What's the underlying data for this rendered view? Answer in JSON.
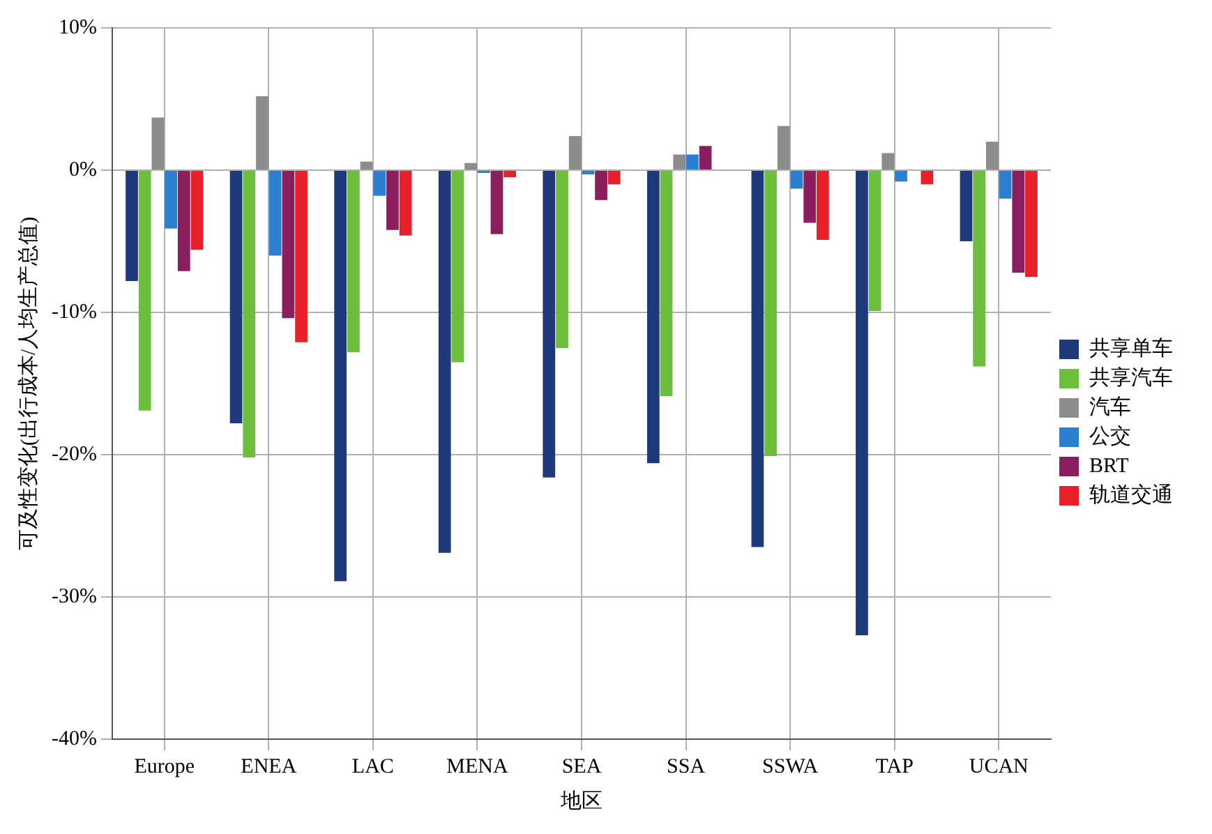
{
  "chart_data": {
    "type": "bar",
    "xlabel": "地区",
    "ylabel": "可及性变化(出行成本/人均生产总值)",
    "categories": [
      "Europe",
      "ENEA",
      "LAC",
      "MENA",
      "SEA",
      "SSA",
      "SSWA",
      "TAP",
      "UCAN"
    ],
    "series": [
      {
        "name": "共享单车",
        "color": "#1f3a7a",
        "values": [
          -7.8,
          -17.8,
          -28.9,
          -26.9,
          -21.6,
          -20.6,
          -26.5,
          -32.7,
          -5.0
        ]
      },
      {
        "name": "共享汽车",
        "color": "#6cbf3c",
        "values": [
          -16.9,
          -20.2,
          -12.8,
          -13.5,
          -12.5,
          -15.9,
          -20.1,
          -9.9,
          -13.8
        ]
      },
      {
        "name": "汽车",
        "color": "#8c8c8c",
        "values": [
          3.7,
          5.2,
          0.6,
          0.5,
          2.4,
          1.1,
          3.1,
          1.2,
          2.0
        ]
      },
      {
        "name": "公交",
        "color": "#2a7fd0",
        "values": [
          -4.1,
          -6.0,
          -1.8,
          -0.2,
          -0.3,
          1.1,
          -1.3,
          -0.8,
          -2.0
        ]
      },
      {
        "name": "BRT",
        "color": "#8b1e5e",
        "values": [
          -7.1,
          -10.4,
          -4.2,
          -4.5,
          -2.1,
          1.7,
          -3.7,
          0,
          -7.2
        ]
      },
      {
        "name": "轨道交通",
        "color": "#e8202a",
        "values": [
          -5.6,
          -12.1,
          -4.6,
          -0.5,
          -1.0,
          0,
          -4.9,
          -1.0,
          -7.5
        ]
      }
    ],
    "ylim": [
      -40,
      10
    ],
    "yticks": [
      {
        "value": -40,
        "label": "-40%"
      },
      {
        "value": -30,
        "label": "-30%"
      },
      {
        "value": -20,
        "label": "-20%"
      },
      {
        "value": -10,
        "label": "-10%"
      },
      {
        "value": 0,
        "label": "0%"
      },
      {
        "value": 10,
        "label": "10%"
      }
    ],
    "grid": true,
    "legend": "right"
  }
}
